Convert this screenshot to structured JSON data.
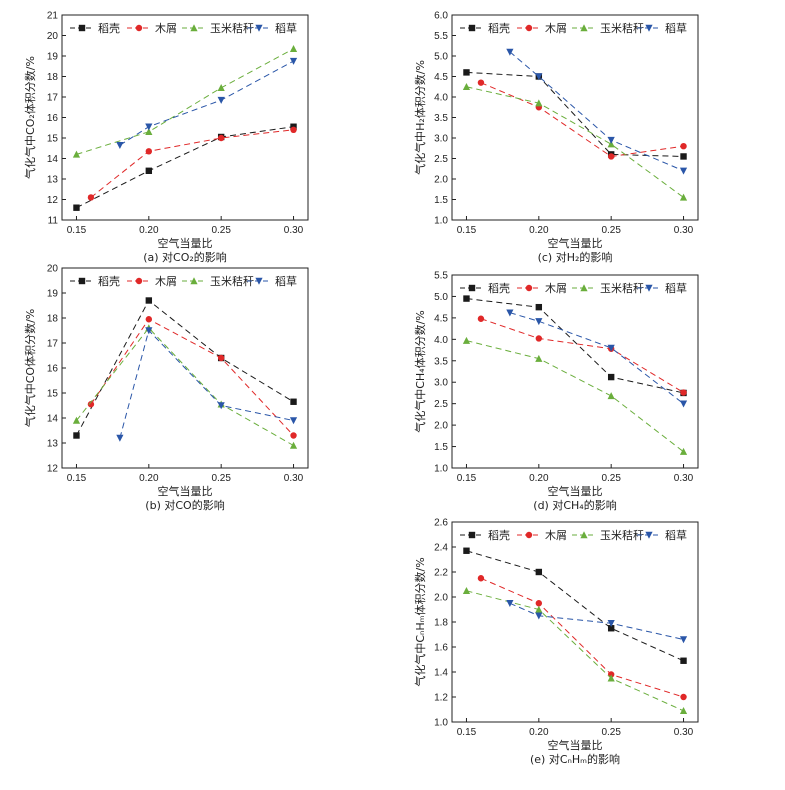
{
  "colors": {
    "稻壳": "#1a1a1a",
    "木屑": "#e02828",
    "玉米秸秆": "#6aae3c",
    "稻草": "#2a56a8"
  },
  "chart_data": [
    {
      "id": "a",
      "type": "line",
      "caption": "(a) 对CO₂的影响",
      "xlabel": "空气当量比",
      "ylabel": "气化气中CO₂体积分数/%",
      "xlim": [
        0.14,
        0.31
      ],
      "ylim": [
        11,
        21
      ],
      "xticks": [
        0.15,
        0.2,
        0.25,
        0.3
      ],
      "xtick_labels": [
        "0.15",
        "0.20",
        "0.25",
        "0.30"
      ],
      "yticks": [
        11,
        12,
        13,
        14,
        15,
        16,
        17,
        18,
        19,
        20,
        21
      ],
      "ytick_labels": [
        "11",
        "12",
        "13",
        "14",
        "15",
        "16",
        "17",
        "18",
        "19",
        "20",
        "21"
      ],
      "series": [
        {
          "name": "稻壳",
          "marker": "square",
          "x": [
            0.15,
            0.2,
            0.25,
            0.3
          ],
          "y": [
            11.6,
            13.4,
            15.05,
            15.55
          ]
        },
        {
          "name": "木屑",
          "marker": "circle",
          "x": [
            0.16,
            0.2,
            0.25,
            0.3
          ],
          "y": [
            12.1,
            14.35,
            15.0,
            15.4
          ]
        },
        {
          "name": "玉米秸秆",
          "marker": "triangle-up",
          "x": [
            0.15,
            0.2,
            0.25,
            0.3
          ],
          "y": [
            14.2,
            15.3,
            17.45,
            19.35
          ]
        },
        {
          "name": "稻草",
          "marker": "triangle-down",
          "x": [
            0.18,
            0.2,
            0.25,
            0.3
          ],
          "y": [
            14.65,
            15.55,
            16.85,
            18.75
          ]
        }
      ]
    },
    {
      "id": "b",
      "type": "line",
      "caption": "(b) 对CO的影响",
      "xlabel": "空气当量比",
      "ylabel": "气化气中CO体积分数/%",
      "xlim": [
        0.14,
        0.31
      ],
      "ylim": [
        12,
        20
      ],
      "xticks": [
        0.15,
        0.2,
        0.25,
        0.3
      ],
      "xtick_labels": [
        "0.15",
        "0.20",
        "0.25",
        "0.30"
      ],
      "yticks": [
        12,
        13,
        14,
        15,
        16,
        17,
        18,
        19,
        20
      ],
      "ytick_labels": [
        "12",
        "13",
        "14",
        "15",
        "16",
        "17",
        "18",
        "19",
        "20"
      ],
      "series": [
        {
          "name": "稻壳",
          "marker": "square",
          "x": [
            0.15,
            0.2,
            0.25,
            0.3
          ],
          "y": [
            13.3,
            18.7,
            16.4,
            14.65
          ]
        },
        {
          "name": "木屑",
          "marker": "circle",
          "x": [
            0.16,
            0.2,
            0.25,
            0.3
          ],
          "y": [
            14.55,
            17.95,
            16.4,
            13.3
          ]
        },
        {
          "name": "玉米秸秆",
          "marker": "triangle-up",
          "x": [
            0.15,
            0.2,
            0.25,
            0.3
          ],
          "y": [
            13.9,
            17.6,
            14.55,
            12.9
          ]
        },
        {
          "name": "稻草",
          "marker": "triangle-down",
          "x": [
            0.18,
            0.2,
            0.25,
            0.3
          ],
          "y": [
            13.2,
            17.5,
            14.5,
            13.9
          ]
        }
      ]
    },
    {
      "id": "c",
      "type": "line",
      "caption": "(c) 对H₂的影响",
      "xlabel": "空气当量比",
      "ylabel": "气化气中H₂体积分数/%",
      "xlim": [
        0.14,
        0.31
      ],
      "ylim": [
        1.0,
        6.0
      ],
      "xticks": [
        0.15,
        0.2,
        0.25,
        0.3
      ],
      "xtick_labels": [
        "0.15",
        "0.20",
        "0.25",
        "0.30"
      ],
      "yticks": [
        1.0,
        1.5,
        2.0,
        2.5,
        3.0,
        3.5,
        4.0,
        4.5,
        5.0,
        5.5,
        6.0
      ],
      "ytick_labels": [
        "1.0",
        "1.5",
        "2.0",
        "2.5",
        "3.0",
        "3.5",
        "4.0",
        "4.5",
        "5.0",
        "5.5",
        "6.0"
      ],
      "series": [
        {
          "name": "稻壳",
          "marker": "square",
          "x": [
            0.15,
            0.2,
            0.25,
            0.3
          ],
          "y": [
            4.6,
            4.5,
            2.6,
            2.55
          ]
        },
        {
          "name": "木屑",
          "marker": "circle",
          "x": [
            0.16,
            0.2,
            0.25,
            0.3
          ],
          "y": [
            4.35,
            3.75,
            2.55,
            2.8
          ]
        },
        {
          "name": "玉米秸秆",
          "marker": "triangle-up",
          "x": [
            0.15,
            0.2,
            0.25,
            0.3
          ],
          "y": [
            4.25,
            3.85,
            2.85,
            1.55
          ]
        },
        {
          "name": "稻草",
          "marker": "triangle-down",
          "x": [
            0.18,
            0.2,
            0.25,
            0.3
          ],
          "y": [
            5.1,
            4.5,
            2.95,
            2.2
          ]
        }
      ]
    },
    {
      "id": "d",
      "type": "line",
      "caption": "(d) 对CH₄的影响",
      "xlabel": "空气当量比",
      "ylabel": "气化气中CH₄体积分数/%",
      "xlim": [
        0.14,
        0.31
      ],
      "ylim": [
        1.0,
        5.5
      ],
      "xticks": [
        0.15,
        0.2,
        0.25,
        0.3
      ],
      "xtick_labels": [
        "0.15",
        "0.20",
        "0.25",
        "0.30"
      ],
      "yticks": [
        1.0,
        1.5,
        2.0,
        2.5,
        3.0,
        3.5,
        4.0,
        4.5,
        5.0,
        5.5
      ],
      "ytick_labels": [
        "1.0",
        "1.5",
        "2.0",
        "2.5",
        "3.0",
        "3.5",
        "4.0",
        "4.5",
        "5.0",
        "5.5"
      ],
      "series": [
        {
          "name": "稻壳",
          "marker": "square",
          "x": [
            0.15,
            0.2,
            0.25,
            0.3
          ],
          "y": [
            4.95,
            4.75,
            3.12,
            2.75
          ]
        },
        {
          "name": "木屑",
          "marker": "circle",
          "x": [
            0.16,
            0.2,
            0.25,
            0.3
          ],
          "y": [
            4.48,
            4.02,
            3.78,
            2.76
          ]
        },
        {
          "name": "玉米秸秆",
          "marker": "triangle-up",
          "x": [
            0.15,
            0.2,
            0.25,
            0.3
          ],
          "y": [
            3.97,
            3.55,
            2.68,
            1.38
          ]
        },
        {
          "name": "稻草",
          "marker": "triangle-down",
          "x": [
            0.18,
            0.2,
            0.25,
            0.3
          ],
          "y": [
            4.62,
            4.42,
            3.8,
            2.5
          ]
        }
      ]
    },
    {
      "id": "e",
      "type": "line",
      "caption": "(e) 对CₙHₘ的影响",
      "xlabel": "空气当量比",
      "ylabel": "气化气中CₙHₘ体积分数/%",
      "xlim": [
        0.14,
        0.31
      ],
      "ylim": [
        1.0,
        2.6
      ],
      "xticks": [
        0.15,
        0.2,
        0.25,
        0.3
      ],
      "xtick_labels": [
        "0.15",
        "0.20",
        "0.25",
        "0.30"
      ],
      "yticks": [
        1.0,
        1.2,
        1.4,
        1.6,
        1.8,
        2.0,
        2.2,
        2.4,
        2.6
      ],
      "ytick_labels": [
        "1.0",
        "1.2",
        "1.4",
        "1.6",
        "1.8",
        "2.0",
        "2.2",
        "2.4",
        "2.6"
      ],
      "series": [
        {
          "name": "稻壳",
          "marker": "square",
          "x": [
            0.15,
            0.2,
            0.25,
            0.3
          ],
          "y": [
            2.37,
            2.2,
            1.75,
            1.49
          ]
        },
        {
          "name": "木屑",
          "marker": "circle",
          "x": [
            0.16,
            0.2,
            0.25,
            0.3
          ],
          "y": [
            2.15,
            1.95,
            1.38,
            1.2
          ]
        },
        {
          "name": "玉米秸秆",
          "marker": "triangle-up",
          "x": [
            0.15,
            0.2,
            0.25,
            0.3
          ],
          "y": [
            2.05,
            1.9,
            1.35,
            1.09
          ]
        },
        {
          "name": "稻草",
          "marker": "triangle-down",
          "x": [
            0.18,
            0.2,
            0.25,
            0.3
          ],
          "y": [
            1.95,
            1.85,
            1.79,
            1.66
          ]
        }
      ]
    }
  ]
}
